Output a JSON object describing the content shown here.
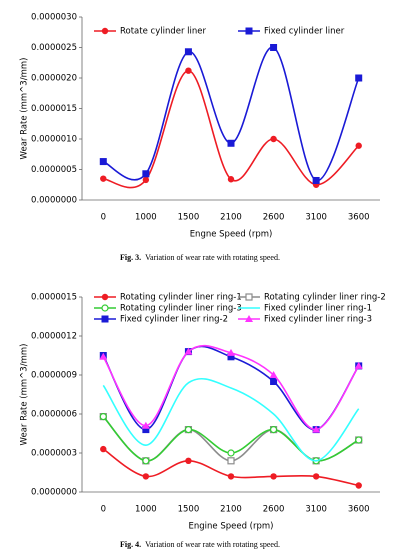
{
  "chart_data": [
    {
      "type": "line",
      "y_label": "Wear Rate (mm^3/mm)",
      "x_label": "Engne Speed (rpm)",
      "caption_label": "Fig. 3.",
      "caption": "Variation of wear rate with rotating speed.",
      "categories": [
        "0",
        "1000",
        "1500",
        "2100",
        "2600",
        "3100",
        "3600"
      ],
      "series": [
        {
          "name": "Rotate cylinder liner",
          "color": "#ee1c24",
          "marker": "circle",
          "values": [
            3.5e-07,
            3.3e-07,
            2.12e-06,
            3.4e-07,
            1e-06,
            2.5e-07,
            8.9e-07
          ]
        },
        {
          "name": "Fixed cylinder liner",
          "color": "#1a1ad6",
          "marker": "square",
          "values": [
            6.3e-07,
            4.3e-07,
            2.43e-06,
            9.3e-07,
            2.5e-06,
            3.2e-07,
            2e-06
          ]
        }
      ],
      "ylim": [
        0,
        3e-06
      ],
      "yticks": [
        {
          "value": 0,
          "label": "0.0000000"
        },
        {
          "value": 5e-07,
          "label": "0.0000005"
        },
        {
          "value": 1e-06,
          "label": "0.0000010"
        },
        {
          "value": 1.5e-06,
          "label": "0.0000015"
        },
        {
          "value": 2e-06,
          "label": "0.0000020"
        },
        {
          "value": 2.5e-06,
          "label": "0.0000025"
        },
        {
          "value": 3e-06,
          "label": "0.0000030"
        }
      ],
      "legend": "top",
      "legend_columns": 2
    },
    {
      "type": "line",
      "y_label": "Wear Rate (mm^3/mm)",
      "x_label": "Engine Speed (rpm)",
      "caption_label": "Fig. 4.",
      "caption": "Variation of wear rate with rotating speed.",
      "categories": [
        "0",
        "1000",
        "1500",
        "2100",
        "2600",
        "3100",
        "3600"
      ],
      "series": [
        {
          "name": "Rotating cylinder liner ring-1",
          "color": "#ee1c24",
          "marker": "circle",
          "values": [
            3.3e-07,
            1.2e-07,
            2.4e-07,
            1.2e-07,
            1.2e-07,
            1.2e-07,
            5e-08
          ]
        },
        {
          "name": "Rotating cylinder liner ring-2",
          "color": "#8c8c8c",
          "marker": "open-square",
          "values": [
            5.8e-07,
            2.4e-07,
            4.8e-07,
            2.4e-07,
            4.8e-07,
            2.4e-07,
            4e-07
          ]
        },
        {
          "name": "Rotating cylinder liner ring-3",
          "color": "#33cc33",
          "marker": "open-circle",
          "values": [
            5.8e-07,
            2.4e-07,
            4.8e-07,
            3e-07,
            4.8e-07,
            2.4e-07,
            4e-07
          ]
        },
        {
          "name": "Fixed cylinder liner ring-1",
          "color": "#33ffff",
          "marker": "none",
          "values": [
            8.2e-07,
            3.6e-07,
            8.4e-07,
            8e-07,
            6e-07,
            2.4e-07,
            6.4e-07
          ]
        },
        {
          "name": "Fixed cylinder liner ring-2",
          "color": "#1a1ad6",
          "marker": "square",
          "values": [
            1.05e-06,
            4.8e-07,
            1.08e-06,
            1.04e-06,
            8.5e-07,
            4.8e-07,
            9.7e-07
          ]
        },
        {
          "name": "Fixed cylinder liner ring-3",
          "color": "#ff33ff",
          "marker": "triangle",
          "values": [
            1.04e-06,
            5.1e-07,
            1.08e-06,
            1.07e-06,
            9e-07,
            4.8e-07,
            9.7e-07
          ]
        }
      ],
      "ylim": [
        0,
        1.5e-06
      ],
      "yticks": [
        {
          "value": 0,
          "label": "0.0000000"
        },
        {
          "value": 3e-07,
          "label": "0.0000003"
        },
        {
          "value": 6e-07,
          "label": "0.0000006"
        },
        {
          "value": 9e-07,
          "label": "0.0000009"
        },
        {
          "value": 1.2e-06,
          "label": "0.0000012"
        },
        {
          "value": 1.5e-06,
          "label": "0.0000015"
        }
      ],
      "legend": "top",
      "legend_columns": 2
    }
  ]
}
